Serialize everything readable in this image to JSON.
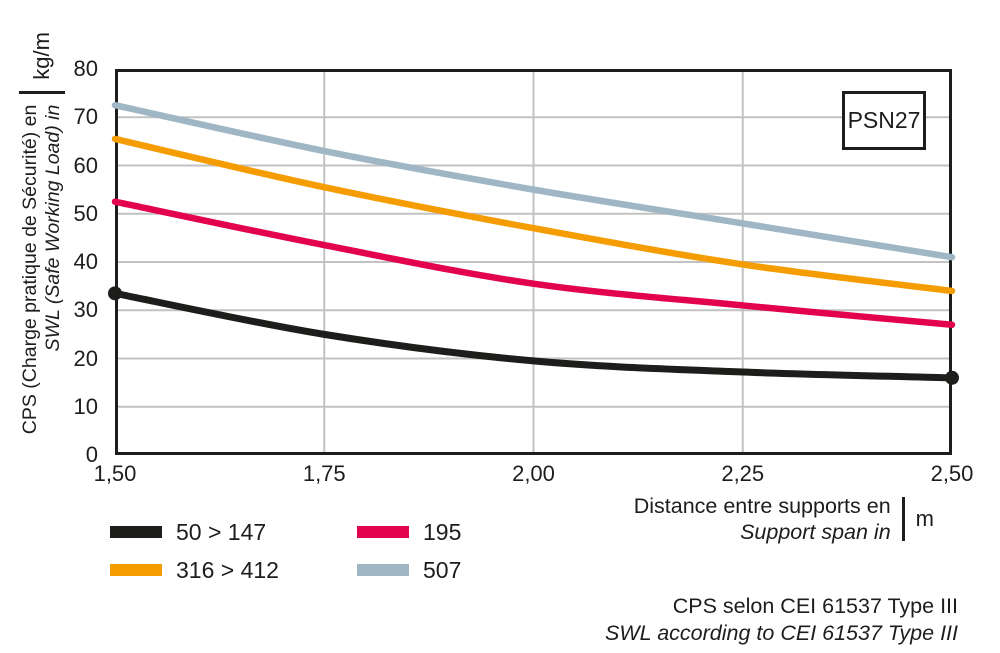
{
  "badge": "PSN27",
  "colors": {
    "ink": "#1d1d1b",
    "grid": "#c2c2c2",
    "series_black": "#1d1d1b",
    "series_pink": "#e2024d",
    "series_orange": "#f59d00",
    "series_blue": "#9fb6c5"
  },
  "y_axis": {
    "label_fr": "CPS (Charge pratique de Sécurité) en",
    "label_en": "SWL (Safe Working Load) in",
    "unit": "kg/m",
    "ticks": [
      "0",
      "10",
      "20",
      "30",
      "40",
      "50",
      "60",
      "70",
      "80"
    ]
  },
  "x_axis": {
    "label_fr": "Distance entre supports en",
    "label_en": "Support span in",
    "unit": "m",
    "ticks": [
      "1,50",
      "1,75",
      "2,00",
      "2,25",
      "2,50"
    ]
  },
  "footer": {
    "line_fr": "CPS selon CEI 61537 Type III",
    "line_en": "SWL according to CEI 61537 Type III"
  },
  "chart_data": {
    "type": "line",
    "title": "PSN27",
    "xlabel": "Distance entre supports en / Support span in (m)",
    "ylabel": "CPS (Charge pratique de Sécurité) / SWL (Safe Working Load) (kg/m)",
    "x": [
      1.5,
      1.75,
      2.0,
      2.25,
      2.5
    ],
    "xlim": [
      1.5,
      2.5
    ],
    "ylim": [
      0,
      80
    ],
    "grid": true,
    "legend_position": "below-left",
    "series": [
      {
        "name": "50 > 147",
        "color": "#1d1d1b",
        "values": [
          33.5,
          25.0,
          19.5,
          17.2,
          16.0
        ],
        "end_markers": true,
        "width": 7
      },
      {
        "name": "195",
        "color": "#e2024d",
        "values": [
          52.5,
          43.5,
          35.5,
          31.0,
          27.0
        ],
        "end_markers": false,
        "width": 6.5
      },
      {
        "name": "316 > 412",
        "color": "#f59d00",
        "values": [
          65.5,
          55.5,
          47.0,
          39.5,
          34.0
        ],
        "end_markers": false,
        "width": 6.5
      },
      {
        "name": "507",
        "color": "#9fb6c5",
        "values": [
          72.5,
          63.0,
          55.0,
          48.0,
          41.0
        ],
        "end_markers": false,
        "width": 6.5
      }
    ]
  }
}
